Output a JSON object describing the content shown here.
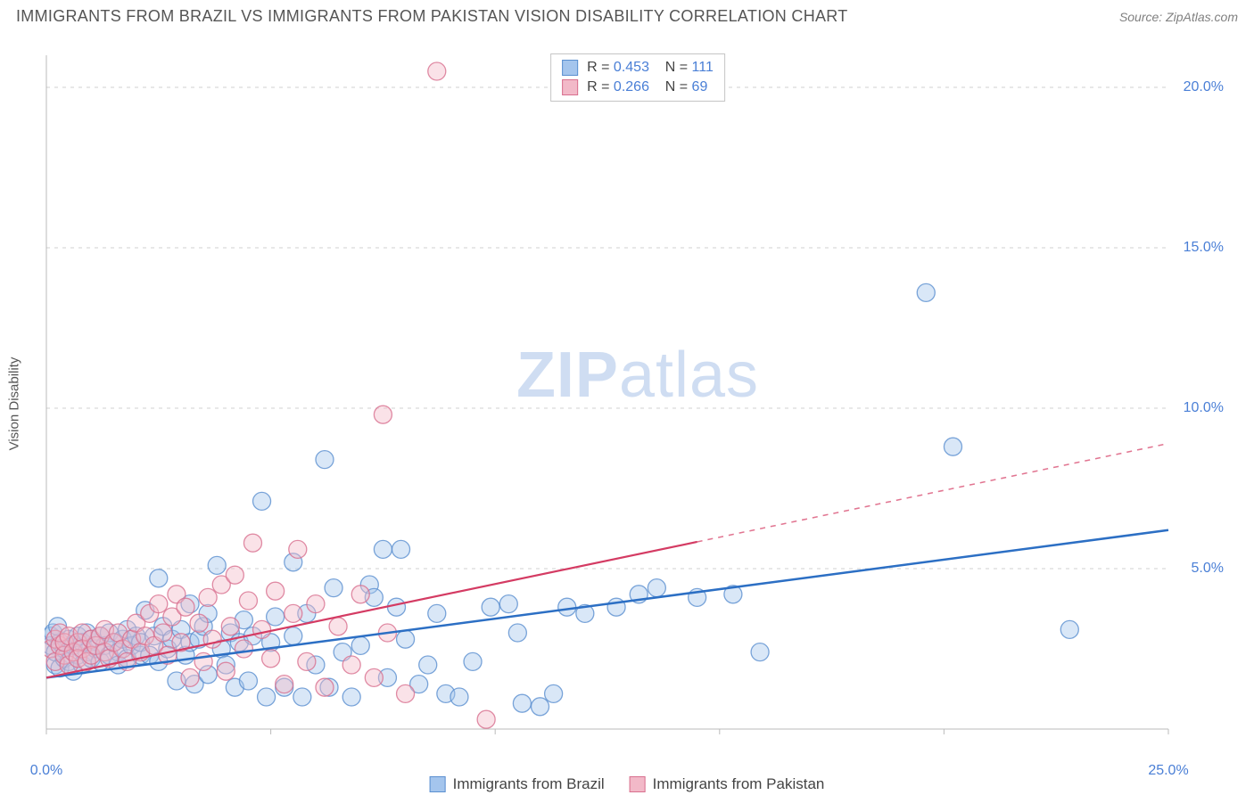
{
  "title": "IMMIGRANTS FROM BRAZIL VS IMMIGRANTS FROM PAKISTAN VISION DISABILITY CORRELATION CHART",
  "source": "Source: ZipAtlas.com",
  "watermark_bold": "ZIP",
  "watermark_rest": "atlas",
  "ylabel": "Vision Disability",
  "chart": {
    "type": "scatter",
    "xlim": [
      0,
      25
    ],
    "ylim": [
      0,
      21
    ],
    "x_ticks": [
      0,
      5,
      10,
      15,
      20,
      25
    ],
    "x_tick_labels": [
      "0.0%",
      "",
      "",
      "",
      "",
      "25.0%"
    ],
    "y_ticks": [
      5,
      10,
      15,
      20
    ],
    "y_tick_labels": [
      "5.0%",
      "10.0%",
      "15.0%",
      "20.0%"
    ],
    "grid_color": "#d0d0d0",
    "axis_color": "#bbbbbb",
    "background_color": "#ffffff",
    "marker_radius": 10,
    "marker_opacity": 0.42,
    "marker_stroke_opacity": 0.8,
    "series": [
      {
        "name": "Immigrants from Brazil",
        "fill": "#a4c5ed",
        "stroke": "#5a8fd0",
        "r_value": "0.453",
        "n_value": "111",
        "trend": {
          "x1": 0,
          "y1": 1.6,
          "x2": 25,
          "y2": 6.2,
          "solid_until_x": 25,
          "line_color": "#2c6fc4",
          "line_width": 2.5
        },
        "points": [
          [
            0.1,
            2.6
          ],
          [
            0.1,
            2.9
          ],
          [
            0.2,
            2.0
          ],
          [
            0.2,
            2.4
          ],
          [
            0.3,
            2.7
          ],
          [
            0.3,
            1.9
          ],
          [
            0.4,
            2.2
          ],
          [
            0.4,
            2.5
          ],
          [
            0.5,
            2.8
          ],
          [
            0.5,
            2.1
          ],
          [
            0.6,
            2.6
          ],
          [
            0.6,
            1.8
          ],
          [
            0.7,
            2.3
          ],
          [
            0.7,
            2.9
          ],
          [
            0.8,
            2.0
          ],
          [
            0.8,
            2.7
          ],
          [
            0.9,
            2.4
          ],
          [
            0.9,
            3.0
          ],
          [
            1.0,
            2.2
          ],
          [
            1.0,
            2.8
          ],
          [
            1.1,
            2.5
          ],
          [
            1.2,
            2.9
          ],
          [
            1.2,
            2.1
          ],
          [
            1.3,
            2.6
          ],
          [
            1.4,
            2.3
          ],
          [
            1.4,
            3.0
          ],
          [
            1.5,
            2.7
          ],
          [
            1.6,
            2.4
          ],
          [
            1.6,
            2.0
          ],
          [
            1.7,
            2.8
          ],
          [
            1.8,
            2.2
          ],
          [
            1.8,
            3.1
          ],
          [
            1.9,
            2.6
          ],
          [
            2.0,
            2.9
          ],
          [
            2.1,
            2.3
          ],
          [
            2.1,
            2.7
          ],
          [
            2.2,
            3.7
          ],
          [
            2.3,
            2.3
          ],
          [
            2.4,
            2.9
          ],
          [
            2.5,
            4.7
          ],
          [
            2.5,
            2.1
          ],
          [
            2.6,
            3.2
          ],
          [
            2.7,
            2.5
          ],
          [
            2.8,
            2.8
          ],
          [
            2.9,
            1.5
          ],
          [
            3.0,
            3.1
          ],
          [
            3.1,
            2.3
          ],
          [
            3.2,
            2.7
          ],
          [
            3.2,
            3.9
          ],
          [
            3.3,
            1.4
          ],
          [
            3.4,
            2.8
          ],
          [
            3.5,
            3.2
          ],
          [
            3.6,
            1.7
          ],
          [
            3.6,
            3.6
          ],
          [
            3.8,
            5.1
          ],
          [
            3.9,
            2.5
          ],
          [
            4.0,
            2.0
          ],
          [
            4.1,
            3.0
          ],
          [
            4.2,
            1.3
          ],
          [
            4.3,
            2.7
          ],
          [
            4.4,
            3.4
          ],
          [
            4.5,
            1.5
          ],
          [
            4.6,
            2.9
          ],
          [
            4.8,
            7.1
          ],
          [
            4.9,
            1.0
          ],
          [
            5.0,
            2.7
          ],
          [
            5.1,
            3.5
          ],
          [
            5.3,
            1.3
          ],
          [
            5.5,
            2.9
          ],
          [
            5.5,
            5.2
          ],
          [
            5.7,
            1.0
          ],
          [
            5.8,
            3.6
          ],
          [
            6.0,
            2.0
          ],
          [
            6.2,
            8.4
          ],
          [
            6.3,
            1.3
          ],
          [
            6.4,
            4.4
          ],
          [
            6.6,
            2.4
          ],
          [
            6.8,
            1.0
          ],
          [
            7.0,
            2.6
          ],
          [
            7.2,
            4.5
          ],
          [
            7.3,
            4.1
          ],
          [
            7.5,
            5.6
          ],
          [
            7.6,
            1.6
          ],
          [
            7.8,
            3.8
          ],
          [
            7.9,
            5.6
          ],
          [
            8.0,
            2.8
          ],
          [
            8.3,
            1.4
          ],
          [
            8.5,
            2.0
          ],
          [
            8.7,
            3.6
          ],
          [
            8.9,
            1.1
          ],
          [
            9.2,
            1.0
          ],
          [
            9.5,
            2.1
          ],
          [
            9.9,
            3.8
          ],
          [
            10.3,
            3.9
          ],
          [
            10.5,
            3.0
          ],
          [
            10.6,
            0.8
          ],
          [
            11.0,
            0.7
          ],
          [
            11.3,
            1.1
          ],
          [
            11.6,
            3.8
          ],
          [
            12.0,
            3.6
          ],
          [
            12.7,
            3.8
          ],
          [
            13.2,
            4.2
          ],
          [
            13.6,
            4.4
          ],
          [
            14.5,
            4.1
          ],
          [
            15.3,
            4.2
          ],
          [
            15.9,
            2.4
          ],
          [
            19.6,
            13.6
          ],
          [
            20.2,
            8.8
          ],
          [
            22.8,
            3.1
          ],
          [
            0.15,
            3.0
          ],
          [
            0.25,
            3.2
          ]
        ]
      },
      {
        "name": "Immigrants from Pakistan",
        "fill": "#f2b9c8",
        "stroke": "#d86f8e",
        "r_value": "0.266",
        "n_value": "69",
        "trend": {
          "x1": 0,
          "y1": 1.6,
          "x2": 25,
          "y2": 8.9,
          "solid_until_x": 14.5,
          "line_color": "#d43b63",
          "line_width": 2.2
        },
        "points": [
          [
            0.1,
            2.5
          ],
          [
            0.2,
            2.8
          ],
          [
            0.2,
            2.1
          ],
          [
            0.3,
            2.6
          ],
          [
            0.3,
            3.0
          ],
          [
            0.4,
            2.3
          ],
          [
            0.4,
            2.7
          ],
          [
            0.5,
            2.0
          ],
          [
            0.5,
            2.9
          ],
          [
            0.6,
            2.4
          ],
          [
            0.7,
            2.7
          ],
          [
            0.7,
            2.2
          ],
          [
            0.8,
            3.0
          ],
          [
            0.8,
            2.5
          ],
          [
            0.9,
            2.1
          ],
          [
            1.0,
            2.8
          ],
          [
            1.0,
            2.3
          ],
          [
            1.1,
            2.6
          ],
          [
            1.2,
            2.9
          ],
          [
            1.3,
            2.4
          ],
          [
            1.3,
            3.1
          ],
          [
            1.4,
            2.2
          ],
          [
            1.5,
            2.7
          ],
          [
            1.6,
            3.0
          ],
          [
            1.7,
            2.5
          ],
          [
            1.8,
            2.1
          ],
          [
            1.9,
            2.8
          ],
          [
            2.0,
            3.3
          ],
          [
            2.1,
            2.4
          ],
          [
            2.2,
            2.9
          ],
          [
            2.3,
            3.6
          ],
          [
            2.4,
            2.6
          ],
          [
            2.5,
            3.9
          ],
          [
            2.6,
            3.0
          ],
          [
            2.7,
            2.3
          ],
          [
            2.8,
            3.5
          ],
          [
            2.9,
            4.2
          ],
          [
            3.0,
            2.7
          ],
          [
            3.1,
            3.8
          ],
          [
            3.2,
            1.6
          ],
          [
            3.4,
            3.3
          ],
          [
            3.5,
            2.1
          ],
          [
            3.6,
            4.1
          ],
          [
            3.7,
            2.8
          ],
          [
            3.9,
            4.5
          ],
          [
            4.0,
            1.8
          ],
          [
            4.1,
            3.2
          ],
          [
            4.2,
            4.8
          ],
          [
            4.4,
            2.5
          ],
          [
            4.5,
            4.0
          ],
          [
            4.6,
            5.8
          ],
          [
            4.8,
            3.1
          ],
          [
            5.0,
            2.2
          ],
          [
            5.1,
            4.3
          ],
          [
            5.3,
            1.4
          ],
          [
            5.5,
            3.6
          ],
          [
            5.6,
            5.6
          ],
          [
            5.8,
            2.1
          ],
          [
            6.0,
            3.9
          ],
          [
            6.2,
            1.3
          ],
          [
            6.5,
            3.2
          ],
          [
            6.8,
            2.0
          ],
          [
            7.0,
            4.2
          ],
          [
            7.3,
            1.6
          ],
          [
            7.5,
            9.8
          ],
          [
            7.6,
            3.0
          ],
          [
            8.0,
            1.1
          ],
          [
            8.7,
            20.5
          ],
          [
            9.8,
            0.3
          ]
        ]
      }
    ]
  },
  "legend_top": {
    "r_label": "R = ",
    "n_label": "N = "
  }
}
